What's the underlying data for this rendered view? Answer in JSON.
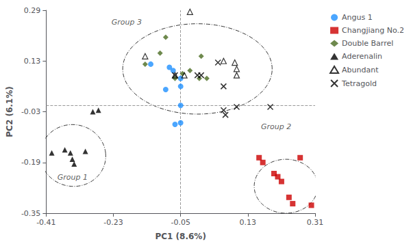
{
  "chart_data": {
    "type": "scatter",
    "xlabel": "PC1 (8.6%)",
    "ylabel": "PC2 (6.1%)",
    "xlim": [
      -0.41,
      0.31
    ],
    "ylim": [
      -0.35,
      0.29
    ],
    "xticks": [
      -0.41,
      -0.23,
      -0.05,
      0.13,
      0.31
    ],
    "yticks": [
      -0.35,
      -0.19,
      -0.03,
      0.13,
      0.29
    ],
    "grid": false,
    "legend": "upper right",
    "hline": -0.015,
    "vline": -0.05,
    "series": [
      {
        "name": "Angus 1",
        "color": "#1E90FF",
        "marker": "circle",
        "values": [
          [
            -0.13,
            0.12
          ],
          [
            -0.08,
            0.11
          ],
          [
            -0.07,
            0.1
          ],
          [
            -0.05,
            0.075
          ],
          [
            -0.05,
            0.05
          ],
          [
            -0.05,
            -0.01
          ],
          [
            -0.05,
            -0.065
          ],
          [
            -0.065,
            -0.07
          ],
          [
            -0.09,
            0.04
          ]
        ]
      },
      {
        "name": "Changjiang No.2",
        "color": "#CC0000",
        "marker": "square",
        "values": [
          [
            0.16,
            -0.175
          ],
          [
            0.17,
            -0.19
          ],
          [
            0.2,
            -0.225
          ],
          [
            0.21,
            -0.235
          ],
          [
            0.22,
            -0.25
          ],
          [
            0.24,
            -0.3
          ],
          [
            0.25,
            -0.32
          ],
          [
            0.27,
            -0.175
          ],
          [
            0.3,
            -0.325
          ]
        ]
      },
      {
        "name": "Double Barrel",
        "color": "#4A6B20",
        "marker": "diamond",
        "values": [
          [
            -0.145,
            0.12
          ],
          [
            -0.105,
            0.155
          ],
          [
            -0.09,
            0.205
          ],
          [
            -0.065,
            0.075
          ],
          [
            -0.045,
            0.09
          ],
          [
            -0.025,
            0.1
          ],
          [
            0.0,
            0.075
          ],
          [
            0.005,
            0.145
          ],
          [
            0.02,
            0.075
          ]
        ]
      },
      {
        "name": "Aderenalin",
        "color": "#000000",
        "marker": "triangle",
        "values": [
          [
            -0.395,
            -0.16
          ],
          [
            -0.36,
            -0.15
          ],
          [
            -0.345,
            -0.16
          ],
          [
            -0.34,
            -0.18
          ],
          [
            -0.335,
            -0.195
          ],
          [
            -0.305,
            -0.155
          ],
          [
            -0.285,
            -0.03
          ],
          [
            -0.27,
            -0.025
          ]
        ]
      },
      {
        "name": "Abundant",
        "color": "#000000",
        "marker": "open_triangle",
        "values": [
          [
            -0.145,
            0.145
          ],
          [
            -0.065,
            0.085
          ],
          [
            -0.04,
            0.085
          ],
          [
            -0.025,
            0.285
          ],
          [
            0.065,
            0.13
          ],
          [
            0.095,
            0.125
          ],
          [
            0.1,
            0.105
          ],
          [
            0.1,
            0.085
          ]
        ]
      },
      {
        "name": "Tetragold",
        "color": "#000000",
        "marker": "x",
        "values": [
          [
            -0.065,
            0.085
          ],
          [
            -0.005,
            0.085
          ],
          [
            0.005,
            0.085
          ],
          [
            0.05,
            0.125
          ],
          [
            0.065,
            0.05
          ],
          [
            0.065,
            -0.025
          ],
          [
            0.07,
            -0.04
          ],
          [
            0.1,
            -0.015
          ],
          [
            0.19,
            -0.015
          ]
        ]
      }
    ],
    "ellipses": [
      {
        "cx": -0.338,
        "cy": -0.168,
        "w": 0.175,
        "h": 0.195,
        "angle": 5
      },
      {
        "cx": 0.232,
        "cy": -0.265,
        "w": 0.17,
        "h": 0.17,
        "angle": -5
      },
      {
        "cx": -0.005,
        "cy": 0.105,
        "w": 0.4,
        "h": 0.285,
        "angle": 0
      }
    ],
    "annotations": [
      {
        "text": "Group 3",
        "x": -0.235,
        "y": 0.235
      },
      {
        "text": "Group 1",
        "x": -0.38,
        "y": -0.255
      },
      {
        "text": "Group 2",
        "x": 0.165,
        "y": -0.095
      }
    ]
  }
}
